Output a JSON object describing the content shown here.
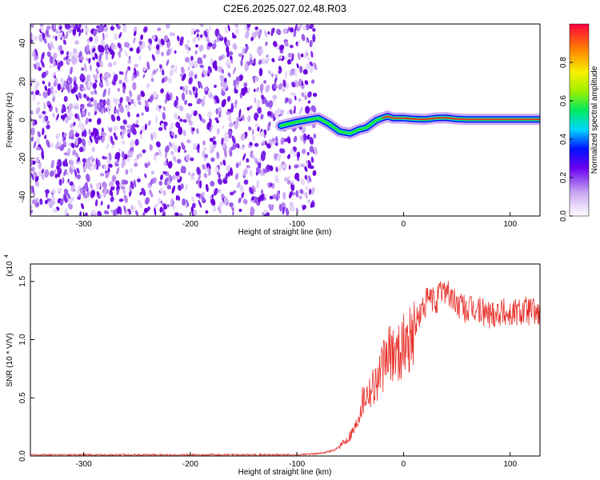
{
  "title": "C2E6.2025.027.02.48.R03",
  "chart_data": [
    {
      "type": "heatmap",
      "title": "C2E6.2025.027.02.48.R03",
      "xlabel": "Height of straight line (km)",
      "ylabel": "Frequency (Hz)",
      "xlim": [
        -350,
        128
      ],
      "ylim": [
        -50,
        50
      ],
      "x_ticks": [
        "-300",
        "-200",
        "-100",
        "0",
        "100"
      ],
      "y_ticks": [
        "-40",
        "-20",
        "0",
        "20",
        "40"
      ],
      "noise_region_x": [
        -350,
        -90
      ],
      "signal_track": {
        "x": [
          -115,
          -100,
          -90,
          -80,
          -70,
          -60,
          -50,
          -42,
          -35,
          -30,
          -25,
          -20,
          -15,
          -10,
          -5,
          0,
          10,
          20,
          30,
          40,
          50,
          60,
          80,
          100,
          128
        ],
        "y": [
          -3,
          -1,
          0,
          1,
          -2,
          -6,
          -7,
          -5,
          -4,
          -2,
          0,
          1,
          2,
          1,
          1,
          1,
          0.5,
          0.3,
          1,
          1.2,
          0.5,
          0.3,
          0.3,
          0.3,
          0.3
        ]
      },
      "colorbar": {
        "label": "Normalized spectral amplitude",
        "ticks": [
          "0.0",
          "0.2",
          "0.4",
          "0.6",
          "0.8"
        ],
        "range": [
          0,
          1
        ]
      }
    },
    {
      "type": "line",
      "xlabel": "Height of straight line (km)",
      "ylabel": "SNR (10 * V/V)",
      "multiplier_label": "(x10",
      "multiplier_exp": "4",
      "xlim": [
        -350,
        128
      ],
      "ylim": [
        0,
        1.65
      ],
      "x_ticks": [
        "-300",
        "-200",
        "-100",
        "0",
        "100"
      ],
      "y_ticks": [
        "0.0",
        "0.5",
        "1.0",
        "1.5"
      ],
      "series": [
        {
          "color": "#e8302a",
          "x": [
            -350,
            -100,
            -80,
            -65,
            -55,
            -45,
            -40,
            -35,
            -30,
            -25,
            -20,
            -15,
            -10,
            -5,
            0,
            5,
            10,
            15,
            20,
            25,
            30,
            35,
            40,
            45,
            50,
            55,
            60,
            70,
            80,
            90,
            100,
            110,
            120,
            128
          ],
          "y": [
            0.01,
            0.01,
            0.02,
            0.05,
            0.12,
            0.25,
            0.45,
            0.55,
            0.6,
            0.65,
            0.75,
            0.85,
            0.9,
            0.9,
            0.95,
            1.0,
            1.1,
            1.2,
            1.3,
            1.35,
            1.32,
            1.4,
            1.45,
            1.35,
            1.3,
            1.28,
            1.25,
            1.25,
            1.22,
            1.25,
            1.22,
            1.25,
            1.25,
            1.22
          ]
        }
      ]
    }
  ]
}
